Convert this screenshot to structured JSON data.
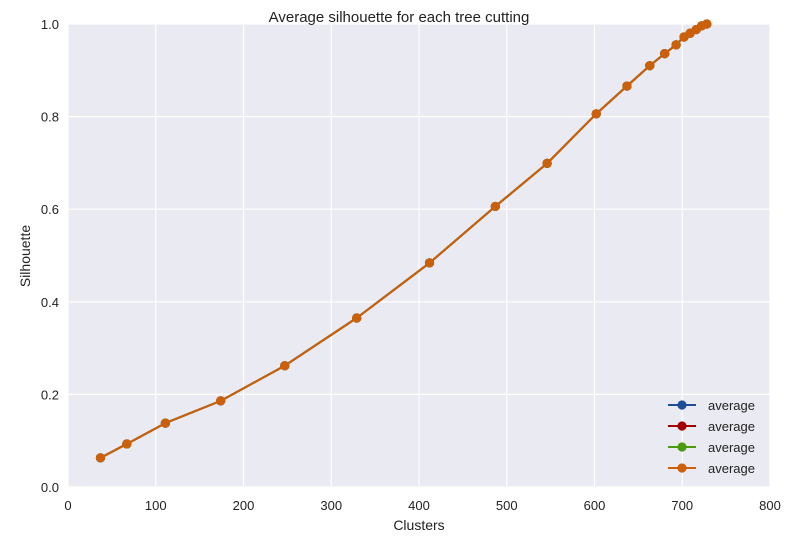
{
  "chart_data": {
    "type": "line",
    "title": "Average silhouette for each tree cutting",
    "xlabel": "Clusters",
    "ylabel": "Silhouette",
    "xlim": [
      0,
      800
    ],
    "ylim": [
      0.0,
      1.0
    ],
    "xticks": [
      "0",
      "100",
      "200",
      "300",
      "400",
      "500",
      "600",
      "700",
      "800"
    ],
    "yticks": [
      "0.0",
      "0.2",
      "0.4",
      "0.6",
      "0.8",
      "1.0"
    ],
    "grid": true,
    "legend_position": "lower-right",
    "x": [
      37,
      67,
      111,
      174,
      247,
      329,
      412,
      487,
      546,
      602,
      637,
      663,
      680,
      693,
      702,
      709,
      716,
      722,
      728
    ],
    "series": [
      {
        "name": "average",
        "color": "#1f4e96",
        "values": [
          0.063,
          0.093,
          0.138,
          0.186,
          0.262,
          0.365,
          0.484,
          0.606,
          0.699,
          0.806,
          0.866,
          0.91,
          0.936,
          0.955,
          0.972,
          0.98,
          0.988,
          0.996,
          1.0
        ]
      },
      {
        "name": "average",
        "color": "#a00000",
        "values": [
          0.063,
          0.093,
          0.138,
          0.186,
          0.262,
          0.365,
          0.484,
          0.606,
          0.699,
          0.806,
          0.866,
          0.91,
          0.936,
          0.955,
          0.972,
          0.98,
          0.988,
          0.996,
          1.0
        ]
      },
      {
        "name": "average",
        "color": "#4c9a0d",
        "values": [
          0.063,
          0.093,
          0.138,
          0.186,
          0.262,
          0.365,
          0.484,
          0.606,
          0.699,
          0.806,
          0.866,
          0.91,
          0.936,
          0.955,
          0.972,
          0.98,
          0.988,
          0.996,
          1.0
        ]
      },
      {
        "name": "average",
        "color": "#cc5f0a",
        "values": [
          0.063,
          0.093,
          0.138,
          0.186,
          0.262,
          0.365,
          0.484,
          0.606,
          0.699,
          0.806,
          0.866,
          0.91,
          0.936,
          0.955,
          0.972,
          0.98,
          0.988,
          0.996,
          1.0
        ]
      }
    ],
    "plot_background": "#eaeaf2",
    "grid_color": "#ffffff"
  }
}
